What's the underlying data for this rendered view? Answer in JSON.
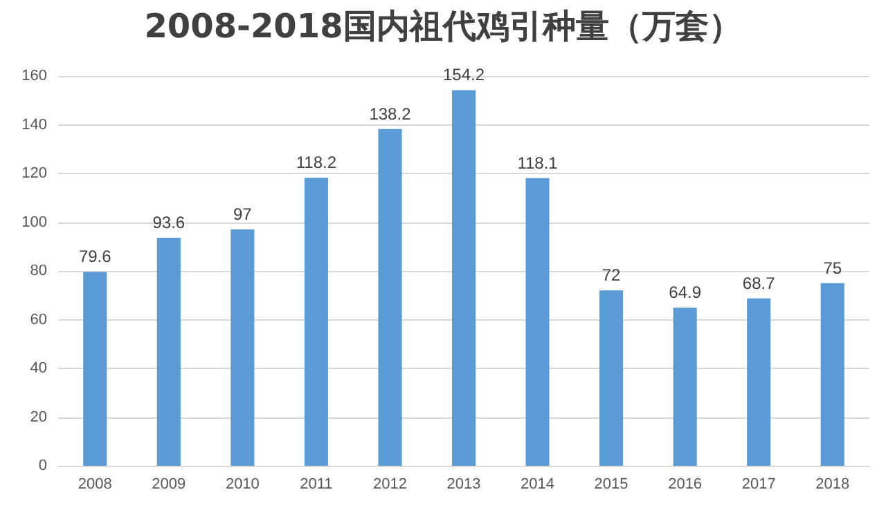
{
  "chart_data": {
    "type": "bar",
    "title": "2008-2018国内祖代鸡引种量（万套）",
    "categories": [
      "2008",
      "2009",
      "2010",
      "2011",
      "2012",
      "2013",
      "2014",
      "2015",
      "2016",
      "2017",
      "2018"
    ],
    "values": [
      79.6,
      93.6,
      97,
      118.2,
      138.2,
      154.2,
      118.1,
      72,
      64.9,
      68.7,
      75
    ],
    "color": "#5b9bd5",
    "ylim": [
      0,
      160
    ],
    "yticks": [
      0,
      20,
      40,
      60,
      80,
      100,
      120,
      140,
      160
    ],
    "grid": "y",
    "data_labels": true
  }
}
